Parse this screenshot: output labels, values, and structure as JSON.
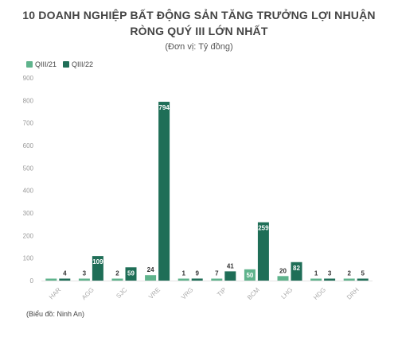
{
  "title_line1": "10 DOANH NGHIỆP BẤT ĐỘNG SẢN TĂNG TRƯỞNG LỢI NHUẬN",
  "title_line2": "RÒNG QUÝ III LỚN NHẤT",
  "subtitle": "(Đơn vị: Tỷ đồng)",
  "footer": "(Biểu đồ: Ninh An)",
  "colors": {
    "q3_21": "#5fb38c",
    "q3_22": "#1f6e57"
  },
  "chart_data": {
    "type": "bar",
    "title": "10 DOANH NGHIỆP BẤT ĐỘNG SẢN TĂNG TRƯỞNG LỢI NHUẬN RÒNG QUÝ III LỚN NHẤT",
    "subtitle": "(Đơn vị: Tỷ đồng)",
    "categories": [
      "HAR",
      "AGG",
      "SJC",
      "VRE",
      "VRG",
      "TIP",
      "BCM",
      "LHG",
      "HDG",
      "DRH"
    ],
    "series": [
      {
        "name": "QIII/21",
        "values": [
          1,
          3,
          2,
          24,
          1,
          7,
          50,
          20,
          1,
          2
        ]
      },
      {
        "name": "QIII/22",
        "values": [
          4,
          109,
          59,
          794,
          9,
          41,
          259,
          82,
          3,
          5
        ]
      }
    ],
    "data_labels": {
      "QIII/21": [
        "",
        "3",
        "2",
        "24",
        "1",
        "7",
        "50",
        "20",
        "1",
        "2"
      ],
      "QIII/22": [
        "4",
        "109",
        "59",
        "794",
        "9",
        "41",
        "259",
        "82",
        "3",
        "5"
      ]
    },
    "ylim": [
      0,
      900
    ],
    "yticks": [
      0,
      100,
      200,
      300,
      400,
      500,
      600,
      700,
      800,
      900
    ],
    "grid": false,
    "legend": "top-left"
  }
}
